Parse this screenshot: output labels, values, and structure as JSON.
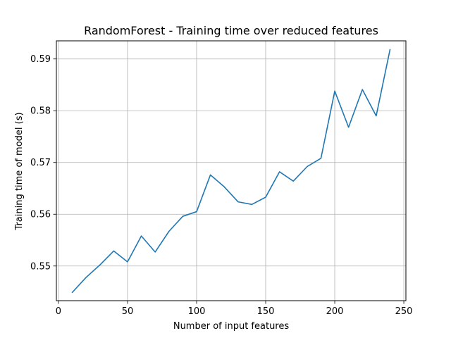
{
  "chart_data": {
    "type": "line",
    "title": "RandomForest - Training time over reduced features",
    "xlabel": "Number of input features",
    "ylabel": "Training time of model (s)",
    "xlim": [
      -1.5,
      251.5
    ],
    "ylim": [
      0.5433,
      0.5935
    ],
    "xticks": [
      0,
      50,
      100,
      150,
      200,
      250
    ],
    "xtick_labels": [
      "0",
      "50",
      "100",
      "150",
      "200",
      "250"
    ],
    "yticks": [
      0.55,
      0.56,
      0.57,
      0.58,
      0.59
    ],
    "ytick_labels": [
      "0.55",
      "0.56",
      "0.57",
      "0.58",
      "0.59"
    ],
    "grid": true,
    "series": [
      {
        "color": "#1f77b4",
        "x": [
          10,
          20,
          30,
          40,
          50,
          60,
          70,
          80,
          90,
          100,
          110,
          120,
          130,
          140,
          150,
          160,
          170,
          180,
          190,
          200,
          210,
          220,
          230,
          240
        ],
        "y": [
          0.5449,
          0.5478,
          0.5502,
          0.5529,
          0.5508,
          0.5558,
          0.5527,
          0.5567,
          0.5596,
          0.5605,
          0.5676,
          0.5653,
          0.5624,
          0.5619,
          0.5633,
          0.5682,
          0.5664,
          0.5692,
          0.5708,
          0.5838,
          0.5768,
          0.5841,
          0.579,
          0.5918
        ]
      }
    ]
  }
}
